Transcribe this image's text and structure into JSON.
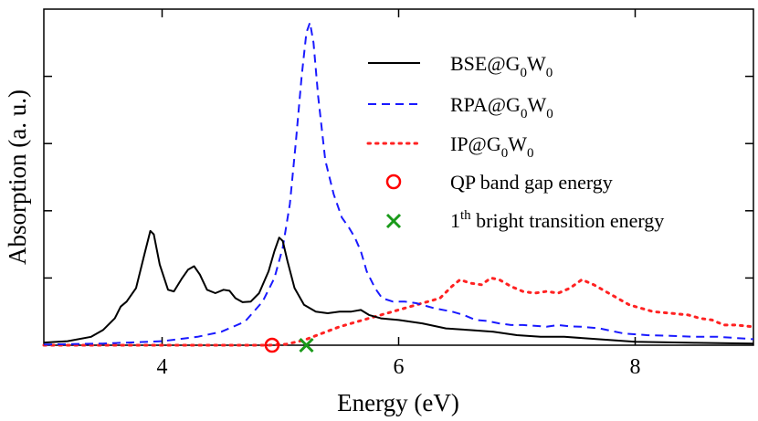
{
  "chart_data": {
    "type": "line",
    "title": "",
    "xlabel": "Energy (eV)",
    "ylabel": "Absorption (a. u.)",
    "xlim": [
      3.0,
      9.0
    ],
    "ylim": [
      0,
      1.0
    ],
    "x_ticks": [
      4,
      6,
      8
    ],
    "x_tick_labels": [
      "4",
      "6",
      "8"
    ],
    "y_ticks": [
      0.2,
      0.4,
      0.6,
      0.8
    ],
    "y_tick_labels_shown": false,
    "legend_position": "top-right",
    "series": [
      {
        "name": "BSE@G0W0",
        "label": {
          "base1": "BSE@G",
          "sub1": "0",
          "base2": "W",
          "sub2": "0"
        },
        "color": "#000000",
        "style": "solid",
        "points": [
          [
            3.0,
            0.008
          ],
          [
            3.2,
            0.012
          ],
          [
            3.4,
            0.025
          ],
          [
            3.5,
            0.045
          ],
          [
            3.6,
            0.08
          ],
          [
            3.65,
            0.115
          ],
          [
            3.7,
            0.13
          ],
          [
            3.78,
            0.17
          ],
          [
            3.85,
            0.27
          ],
          [
            3.9,
            0.34
          ],
          [
            3.93,
            0.33
          ],
          [
            3.98,
            0.24
          ],
          [
            4.05,
            0.165
          ],
          [
            4.1,
            0.16
          ],
          [
            4.17,
            0.2
          ],
          [
            4.22,
            0.225
          ],
          [
            4.27,
            0.235
          ],
          [
            4.32,
            0.21
          ],
          [
            4.38,
            0.165
          ],
          [
            4.45,
            0.155
          ],
          [
            4.52,
            0.165
          ],
          [
            4.57,
            0.162
          ],
          [
            4.62,
            0.14
          ],
          [
            4.68,
            0.128
          ],
          [
            4.75,
            0.13
          ],
          [
            4.82,
            0.155
          ],
          [
            4.9,
            0.22
          ],
          [
            4.95,
            0.28
          ],
          [
            4.99,
            0.32
          ],
          [
            5.02,
            0.31
          ],
          [
            5.06,
            0.25
          ],
          [
            5.12,
            0.17
          ],
          [
            5.2,
            0.12
          ],
          [
            5.3,
            0.1
          ],
          [
            5.4,
            0.095
          ],
          [
            5.5,
            0.1
          ],
          [
            5.6,
            0.1
          ],
          [
            5.68,
            0.105
          ],
          [
            5.75,
            0.09
          ],
          [
            5.85,
            0.08
          ],
          [
            6.0,
            0.075
          ],
          [
            6.2,
            0.065
          ],
          [
            6.4,
            0.05
          ],
          [
            6.6,
            0.045
          ],
          [
            6.8,
            0.04
          ],
          [
            7.0,
            0.03
          ],
          [
            7.2,
            0.025
          ],
          [
            7.4,
            0.025
          ],
          [
            7.6,
            0.02
          ],
          [
            8.0,
            0.01
          ],
          [
            8.5,
            0.007
          ],
          [
            9.0,
            0.005
          ]
        ]
      },
      {
        "name": "RPA@G0W0",
        "label": {
          "base1": "RPA@G",
          "sub1": "0",
          "base2": "W",
          "sub2": "0"
        },
        "color": "#1a1aff",
        "style": "dashed",
        "points": [
          [
            3.0,
            0.002
          ],
          [
            3.5,
            0.005
          ],
          [
            4.0,
            0.012
          ],
          [
            4.3,
            0.025
          ],
          [
            4.5,
            0.04
          ],
          [
            4.7,
            0.07
          ],
          [
            4.85,
            0.13
          ],
          [
            4.95,
            0.2
          ],
          [
            5.02,
            0.29
          ],
          [
            5.08,
            0.42
          ],
          [
            5.13,
            0.6
          ],
          [
            5.18,
            0.8
          ],
          [
            5.22,
            0.93
          ],
          [
            5.25,
            0.96
          ],
          [
            5.28,
            0.9
          ],
          [
            5.32,
            0.74
          ],
          [
            5.38,
            0.55
          ],
          [
            5.45,
            0.45
          ],
          [
            5.52,
            0.38
          ],
          [
            5.58,
            0.35
          ],
          [
            5.63,
            0.32
          ],
          [
            5.68,
            0.28
          ],
          [
            5.73,
            0.22
          ],
          [
            5.8,
            0.17
          ],
          [
            5.86,
            0.14
          ],
          [
            5.95,
            0.13
          ],
          [
            6.05,
            0.13
          ],
          [
            6.15,
            0.125
          ],
          [
            6.3,
            0.11
          ],
          [
            6.45,
            0.1
          ],
          [
            6.55,
            0.09
          ],
          [
            6.65,
            0.075
          ],
          [
            6.75,
            0.072
          ],
          [
            6.85,
            0.065
          ],
          [
            6.95,
            0.06
          ],
          [
            7.05,
            0.06
          ],
          [
            7.15,
            0.058
          ],
          [
            7.25,
            0.055
          ],
          [
            7.35,
            0.06
          ],
          [
            7.45,
            0.056
          ],
          [
            7.55,
            0.055
          ],
          [
            7.7,
            0.05
          ],
          [
            7.9,
            0.035
          ],
          [
            8.1,
            0.03
          ],
          [
            8.3,
            0.028
          ],
          [
            8.5,
            0.025
          ],
          [
            8.7,
            0.025
          ],
          [
            9.0,
            0.018
          ]
        ]
      },
      {
        "name": "IP@G0W0",
        "label": {
          "base1": "IP@G",
          "sub1": "0",
          "base2": "W",
          "sub2": "0"
        },
        "color": "#ff2222",
        "style": "dotted",
        "points": [
          [
            3.0,
            0.0
          ],
          [
            4.9,
            0.0
          ],
          [
            5.05,
            0.003
          ],
          [
            5.2,
            0.015
          ],
          [
            5.35,
            0.035
          ],
          [
            5.5,
            0.055
          ],
          [
            5.65,
            0.07
          ],
          [
            5.8,
            0.085
          ],
          [
            5.95,
            0.1
          ],
          [
            6.05,
            0.11
          ],
          [
            6.15,
            0.12
          ],
          [
            6.25,
            0.13
          ],
          [
            6.35,
            0.14
          ],
          [
            6.45,
            0.175
          ],
          [
            6.52,
            0.195
          ],
          [
            6.6,
            0.185
          ],
          [
            6.7,
            0.18
          ],
          [
            6.78,
            0.2
          ],
          [
            6.85,
            0.195
          ],
          [
            6.95,
            0.175
          ],
          [
            7.05,
            0.16
          ],
          [
            7.15,
            0.155
          ],
          [
            7.25,
            0.16
          ],
          [
            7.35,
            0.155
          ],
          [
            7.45,
            0.17
          ],
          [
            7.55,
            0.195
          ],
          [
            7.65,
            0.18
          ],
          [
            7.75,
            0.16
          ],
          [
            7.85,
            0.14
          ],
          [
            7.95,
            0.12
          ],
          [
            8.05,
            0.11
          ],
          [
            8.15,
            0.1
          ],
          [
            8.3,
            0.095
          ],
          [
            8.45,
            0.09
          ],
          [
            8.55,
            0.08
          ],
          [
            8.65,
            0.075
          ],
          [
            8.75,
            0.06
          ],
          [
            8.85,
            0.06
          ],
          [
            9.0,
            0.055
          ]
        ]
      }
    ],
    "markers": [
      {
        "name": "QP band gap energy",
        "label": {
          "base1": "QP band gap energy",
          "sub1": "",
          "base2": "",
          "sub2": ""
        },
        "shape": "circle",
        "color": "#ff0000",
        "x": 4.93,
        "y": 0.0
      },
      {
        "name": "1th bright transition energy",
        "label": {
          "base1": "1",
          "sup1": "th",
          "base2": " bright transition energy"
        },
        "shape": "cross",
        "color": "#1a9a1a",
        "x": 5.22,
        "y": 0.0
      }
    ]
  }
}
